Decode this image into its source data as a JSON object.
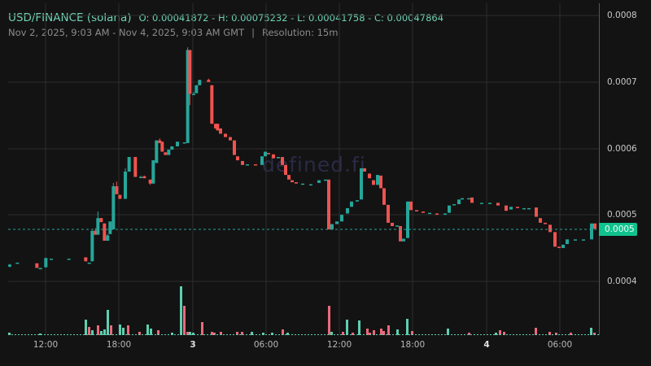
{
  "header": {
    "pair": "USD/FINANCE (solana)",
    "ohlc": "O: 0.00041872 - H: 0.00075232 - L: 0.00041758 - C: 0.00047864",
    "range": "Nov 2, 2025, 9:03 AM - Nov 4, 2025, 9:03 AM GMT",
    "separator": "|",
    "resolution": "Resolution: 15m"
  },
  "watermark": "defined.fi",
  "last_price_label": "0.0005",
  "colors": {
    "up": "#26a69a",
    "down": "#ef5350",
    "up_vol": "#5fcfb0",
    "down_vol": "#e96a7c",
    "grid": "#2e2e2e",
    "bg": "#131313"
  },
  "chart_data": {
    "type": "candlestick",
    "title": "USD/FINANCE (solana)",
    "resolution": "15m",
    "open": 0.00041872,
    "high": 0.00075232,
    "low": 0.00041758,
    "close": 0.00047864,
    "y_ticks": [
      "0.0008",
      "0.0007",
      "0.0006",
      "0.0005",
      "0.0004"
    ],
    "x_ticks": [
      "12:00",
      "18:00",
      "3",
      "06:00",
      "12:00",
      "18:00",
      "4",
      "06:00"
    ],
    "ylim": [
      0.00033,
      0.00082
    ],
    "last_price": 0.00047864,
    "candles_approx": [
      [
        12,
        0.000422,
        0.000425,
        0.000426,
        0.000421
      ],
      [
        40,
        0.000427,
        0.000428,
        0.000428,
        0.000427
      ],
      [
        112,
        0.000427,
        0.00042,
        0.000427,
        0.00042
      ],
      [
        125,
        0.000418,
        0.00042,
        0.00042,
        0.000418
      ],
      [
        145,
        0.000421,
        0.000435,
        0.000435,
        0.000421
      ],
      [
        165,
        0.000434,
        0.000434,
        0.000434,
        0.000434
      ],
      [
        230,
        0.000434,
        0.000434,
        0.000434,
        0.000434
      ],
      [
        292,
        0.000436,
        0.00043,
        0.000436,
        0.00043
      ],
      [
        305,
        0.000428,
        0.000428,
        0.000428,
        0.000428
      ],
      [
        316,
        0.00043,
        0.000476,
        0.000476,
        0.00043
      ],
      [
        328,
        0.000476,
        0.00047,
        0.00048,
        0.00047
      ],
      [
        337,
        0.00047,
        0.000495,
        0.000505,
        0.00047
      ],
      [
        349,
        0.000495,
        0.000489,
        0.000495,
        0.000489
      ],
      [
        361,
        0.000487,
        0.000461,
        0.000487,
        0.000461
      ],
      [
        373,
        0.000461,
        0.000469,
        0.000471,
        0.000461
      ],
      [
        382,
        0.000471,
        0.00049,
        0.00049,
        0.000471
      ],
      [
        394,
        0.000478,
        0.000543,
        0.000548,
        0.000478
      ],
      [
        406,
        0.000543,
        0.000531,
        0.00055,
        0.000531
      ],
      [
        418,
        0.00053,
        0.000524,
        0.00053,
        0.000524
      ],
      [
        438,
        0.000524,
        0.000565,
        0.00057,
        0.000524
      ],
      [
        452,
        0.000565,
        0.000587,
        0.000587,
        0.000565
      ],
      [
        475,
        0.000587,
        0.000557,
        0.000587,
        0.000557
      ],
      [
        495,
        0.000557,
        0.000557,
        0.000559,
        0.000557
      ],
      [
        508,
        0.000558,
        0.000555,
        0.000559,
        0.000555
      ],
      [
        530,
        0.000553,
        0.000547,
        0.000553,
        0.000545
      ],
      [
        541,
        0.000547,
        0.000582,
        0.000582,
        0.000547
      ],
      [
        553,
        0.000578,
        0.000612,
        0.000612,
        0.000578
      ],
      [
        565,
        0.000612,
        0.000608,
        0.000615,
        0.000608
      ],
      [
        574,
        0.00061,
        0.000595,
        0.00061,
        0.000595
      ],
      [
        586,
        0.000594,
        0.00059,
        0.000594,
        0.00059
      ],
      [
        598,
        0.00059,
        0.000598,
        0.000598,
        0.00059
      ],
      [
        610,
        0.000598,
        0.000603,
        0.000603,
        0.000598
      ],
      [
        630,
        0.000603,
        0.00061,
        0.00061,
        0.000603
      ],
      [
        656,
        0.000609,
        0.000609,
        0.000609,
        0.000609
      ],
      [
        668,
        0.000608,
        0.000748,
        0.000752,
        0.000608
      ],
      [
        676,
        0.000748,
        0.000682,
        0.000748,
        0.000665
      ],
      [
        690,
        0.000682,
        0.000682,
        0.000685,
        0.000682
      ],
      [
        700,
        0.000683,
        0.000695,
        0.000695,
        0.000683
      ],
      [
        712,
        0.000695,
        0.000703,
        0.000703,
        0.000695
      ],
      [
        745,
        0.000703,
        0.0007,
        0.000705,
        0.0007
      ],
      [
        757,
        0.000695,
        0.000637,
        0.000695,
        0.000637
      ],
      [
        778,
        0.000637,
        0.000627,
        0.000637,
        0.000627
      ]
    ],
    "volume_note": "volume histogram at bottom; largest spike near '3' (~00:00 Nov 3), second near 11:30 Nov 3"
  }
}
